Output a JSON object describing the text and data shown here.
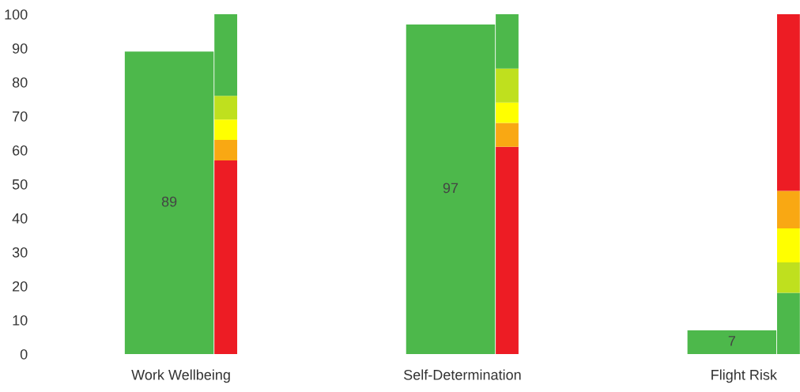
{
  "chart_data": {
    "type": "bar",
    "categories": [
      "Work Wellbeing",
      "Self-Determination",
      "Flight Risk"
    ],
    "series": [
      {
        "color": "#4db84b",
        "values": [
          89,
          97,
          7
        ],
        "value_labels": [
          "89",
          "97",
          "7"
        ]
      },
      {
        "colors": [
          "#ed1c24",
          "#ed1c24",
          "#4db84b"
        ],
        "values": [
          57,
          61,
          18
        ],
        "base": [
          0,
          0,
          0
        ]
      },
      {
        "colors": [
          "#f9a813",
          "#f9a813",
          "#bfe01e"
        ],
        "values": [
          6,
          7,
          9
        ],
        "base": [
          57,
          61,
          18
        ]
      },
      {
        "colors": [
          "#ffff00",
          "#ffff00",
          "#ffff00"
        ],
        "values": [
          6,
          6,
          10
        ],
        "base": [
          63,
          68,
          27
        ]
      },
      {
        "colors": [
          "#bfe01e",
          "#bfe01e",
          "#f9a813"
        ],
        "values": [
          7,
          10,
          11
        ],
        "base": [
          69,
          74,
          37
        ]
      },
      {
        "colors": [
          "#4db84b",
          "#4db84b",
          "#ed1c24"
        ],
        "values": [
          24,
          16,
          52
        ],
        "base": [
          76,
          84,
          48
        ]
      }
    ],
    "ylim": [
      0,
      100
    ],
    "yticks": [
      0,
      10,
      20,
      30,
      40,
      50,
      60,
      70,
      80,
      90,
      100
    ],
    "grid": false,
    "legend": false
  }
}
